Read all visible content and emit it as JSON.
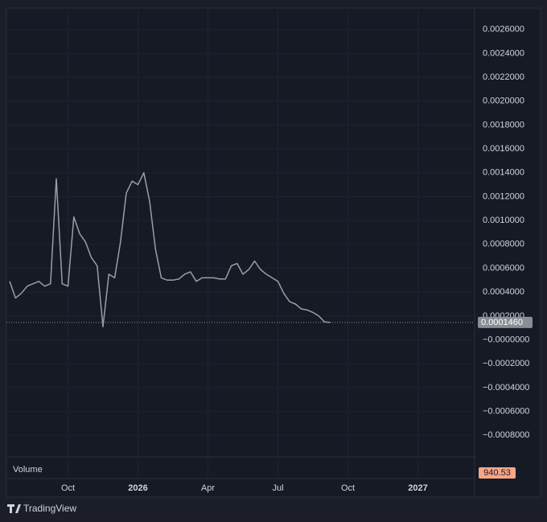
{
  "chart_data": {
    "type": "line",
    "categories": [
      null,
      null,
      null,
      null,
      null,
      null,
      null,
      null,
      null,
      null,
      "Oct",
      null,
      null,
      null,
      null,
      null,
      null,
      null,
      null,
      null,
      null,
      null,
      "2026",
      null,
      null,
      null,
      null,
      null,
      null,
      null,
      null,
      null,
      null,
      null,
      "Apr",
      null,
      null,
      null,
      null,
      null,
      null,
      null,
      null,
      null,
      null,
      null,
      "Jul",
      null,
      null,
      null,
      null,
      null,
      null,
      null,
      null,
      null,
      null,
      null,
      "Oct",
      null,
      null,
      null,
      null,
      null,
      null,
      null,
      null,
      null,
      null,
      null,
      "2027",
      null,
      null,
      null,
      null,
      null,
      null,
      null,
      null,
      null
    ],
    "series": [
      {
        "color": "#9b9ea6",
        "values": [
          0.00049,
          0.00035,
          0.00039,
          0.00045,
          0.00047,
          0.00049,
          0.00045,
          0.00047,
          0.00135,
          0.00047,
          0.00045,
          0.00103,
          0.00089,
          0.00082,
          0.00069,
          0.00062,
          0.00011,
          0.00055,
          0.00052,
          0.00082,
          0.00123,
          0.00133,
          0.0013,
          0.0014,
          0.00116,
          0.00076,
          0.00052,
          0.0005,
          0.0005,
          0.00051,
          0.00055,
          0.00057,
          0.00049,
          0.00052,
          0.00052,
          0.00052,
          0.00051,
          0.00051,
          0.00062,
          0.00064,
          0.00055,
          0.00059,
          0.00066,
          0.00059,
          0.00055,
          0.00052,
          0.00049,
          0.00039,
          0.00032,
          0.0003,
          0.00026,
          0.00025,
          0.00023,
          0.0002,
          0.00015,
          0.000146,
          null,
          null,
          null,
          null,
          null,
          null,
          null,
          null,
          null,
          null,
          null,
          null,
          null,
          null,
          null,
          null,
          null,
          null,
          null,
          null,
          null,
          null,
          null,
          null
        ]
      }
    ],
    "ylim": [
      -0.00096,
      0.00278
    ],
    "yticks": [
      {
        "value": -0.0008,
        "label": "−0.0008000"
      },
      {
        "value": -0.0006,
        "label": "−0.0006000"
      },
      {
        "value": -0.0004,
        "label": "−0.0004000"
      },
      {
        "value": -0.0002,
        "label": "−0.0002000"
      },
      {
        "value": 0,
        "label": "−0.0000000"
      },
      {
        "value": 0.0002,
        "label": "0.0002000"
      },
      {
        "value": 0.0004,
        "label": "0.0004000"
      },
      {
        "value": 0.0006,
        "label": "0.0006000"
      },
      {
        "value": 0.0008,
        "label": "0.0008000"
      },
      {
        "value": 0.001,
        "label": "0.0010000"
      },
      {
        "value": 0.0012,
        "label": "0.0012000"
      },
      {
        "value": 0.0014,
        "label": "0.0014000"
      },
      {
        "value": 0.0016,
        "label": "0.0016000"
      },
      {
        "value": 0.0018,
        "label": "0.0018000"
      },
      {
        "value": 0.002,
        "label": "0.0020000"
      },
      {
        "value": 0.0022,
        "label": "0.0022000"
      },
      {
        "value": 0.0024,
        "label": "0.0024000"
      },
      {
        "value": 0.0026,
        "label": "0.0026000"
      }
    ],
    "grid": true,
    "last_price": {
      "value": 0.000146,
      "label": "0.0001460"
    },
    "volume_label": "Volume",
    "volume_last": "940.53",
    "brand": "TradingView"
  }
}
